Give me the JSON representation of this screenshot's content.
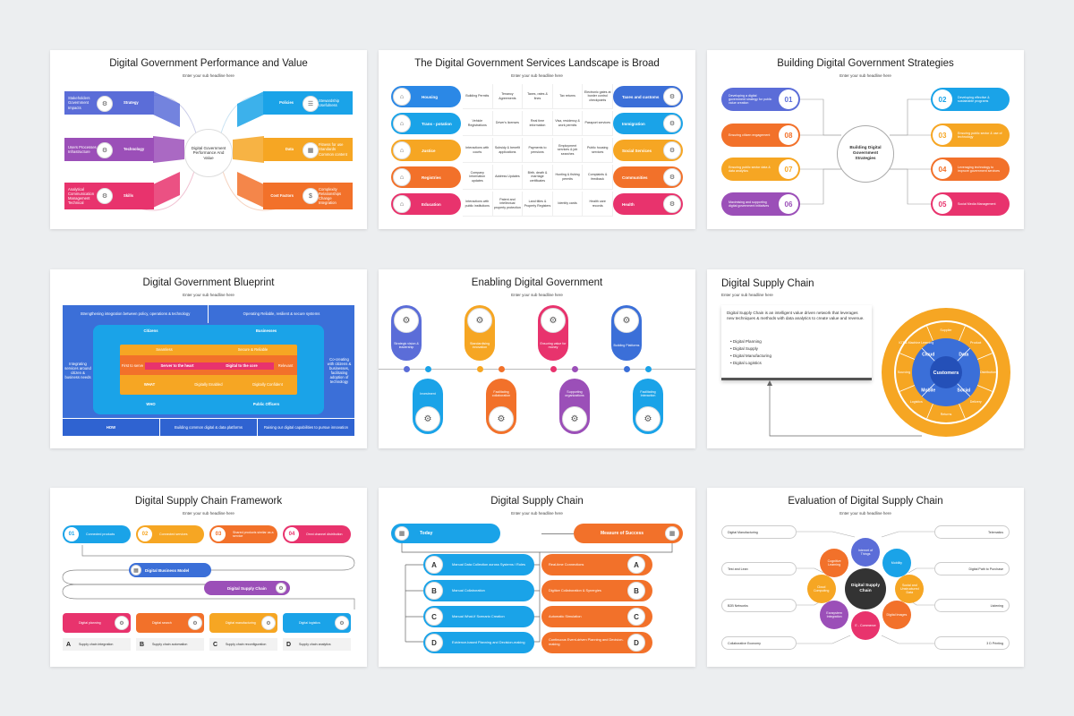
{
  "subtitle": "Enter your sub headline here",
  "s1": {
    "title": "Digital Government Performance and Value",
    "center": "Digital Government Performance And Value",
    "left": [
      {
        "label": "Strategy",
        "desc": "Stakeholders Government Impacts",
        "color": "#5b6dd8"
      },
      {
        "label": "Technology",
        "desc": "Users Processes Infrastructure",
        "color": "#9b4fb8"
      },
      {
        "label": "Skills",
        "desc": "Analytical Communication Management Technical",
        "color": "#e8336d"
      }
    ],
    "right": [
      {
        "label": "Policies",
        "desc": "Stewardship Usefulness",
        "color": "#1aa3e8"
      },
      {
        "label": "Data",
        "desc": "Fitness for use Standards Common content",
        "color": "#f6a623"
      },
      {
        "label": "Cost Factors",
        "desc": "Complexity Relationships Change Integration",
        "color": "#f2712a"
      }
    ]
  },
  "s2": {
    "title": "The Digital Government Services Landscape is Broad",
    "left": [
      {
        "label": "Housing",
        "color": "#2b88e6"
      },
      {
        "label": "Trans - potation",
        "color": "#1aa3e8"
      },
      {
        "label": "Justice",
        "color": "#f6a623"
      },
      {
        "label": "Registries",
        "color": "#f2712a"
      },
      {
        "label": "Education",
        "color": "#e8336d"
      }
    ],
    "right": [
      {
        "label": "Taxes and customs",
        "color": "#3b6fd8"
      },
      {
        "label": "Immigration",
        "color": "#1aa3e8"
      },
      {
        "label": "Social Services",
        "color": "#f6a623"
      },
      {
        "label": "Communities",
        "color": "#f2712a"
      },
      {
        "label": "Health",
        "color": "#e8336d"
      }
    ],
    "cells": [
      [
        "Building Permits",
        "Tenancy Agreements",
        "Taxes, rates & fines",
        "Tax returns",
        "Electronic gates at border control checkpoints"
      ],
      [
        "Vehicle Registrations",
        "Driver's licenses",
        "Real time information",
        "Visa, residency & work permits",
        "Passport services"
      ],
      [
        "Interactions with courts",
        "Subsidy & benefit applications",
        "Payments to pensions",
        "Employment services & job searches",
        "Public housing services"
      ],
      [
        "Company information updates",
        "Address Updates",
        "Birth, death & marriage certificates",
        "Hunting & fishing permits",
        "Complaints & feedback"
      ],
      [
        "Interactions with public institutions",
        "Patent and intellectual property protection",
        "Land titles & Property Registers",
        "Identity cards",
        "Health care records"
      ]
    ]
  },
  "s3": {
    "title": "Building Digital Government Strategies",
    "center": "Building Digital Government Strategies",
    "left": [
      {
        "num": "01",
        "text": "Developing a digital government strategy for public value creation",
        "color": "#5b6dd8"
      },
      {
        "num": "08",
        "text": "Ensuring citizen engagement",
        "color": "#f2712a"
      },
      {
        "num": "07",
        "text": "Ensuring public sector data & data analytics",
        "color": "#f6a623"
      },
      {
        "num": "06",
        "text": "Maximising and supporting digital government initiatives",
        "color": "#9b4fb8"
      }
    ],
    "right": [
      {
        "num": "02",
        "text": "Developing effective & sustainable programs",
        "color": "#1aa3e8"
      },
      {
        "num": "03",
        "text": "Ensuring public sector & use of technology",
        "color": "#f6a623"
      },
      {
        "num": "04",
        "text": "Leveraging technology to improve government services",
        "color": "#f2712a"
      },
      {
        "num": "05",
        "text": "Social Media Management",
        "color": "#e8336d"
      }
    ]
  },
  "s4": {
    "title": "Digital Government Blueprint",
    "top_left": "Strengthening integration between policy, operations & technology",
    "top_right": "Operating Reliable, resilient & secure systems",
    "left_side": "Integrating services around citizen & business needs",
    "right_side": "Co-creating with citizens & businesses, facilitating adoption of technology",
    "citizens": "Citizens",
    "businesses": "Businesses",
    "seamless": "Seamless",
    "secure": "Secure & Reliable",
    "first_to_serve": "First to serve",
    "server_heart": "Server to the heart",
    "digital_core": "Digital to the core",
    "relevant": "Relevant",
    "what": "WHAT",
    "digitally_enabled": "Digitally Enabled",
    "digitally_confident": "Digitally Confident",
    "who": "WHO",
    "public_officers": "Public Officers",
    "how": "HOW",
    "bottom_mid": "Building common digital & data platforms",
    "bottom_right": "Raising our digital capabilities to pursue innovation"
  },
  "s5": {
    "title": "Enabling Digital Government",
    "top": [
      {
        "text": "Strategic vision & leadership",
        "color": "#5b6dd8"
      },
      {
        "text": "Standardising innovation",
        "color": "#f6a623"
      },
      {
        "text": "Ensuring value for money",
        "color": "#e8336d"
      },
      {
        "text": "Building Platforms",
        "color": "#3b6fd8"
      }
    ],
    "bottom": [
      {
        "text": "Investment",
        "color": "#1aa3e8"
      },
      {
        "text": "Facilitating collaboration",
        "color": "#f2712a"
      },
      {
        "text": "Supporting organizations",
        "color": "#9b4fb8"
      },
      {
        "text": "Facilitating Interaction",
        "color": "#1aa3e8"
      }
    ]
  },
  "s6": {
    "title": "Digital Supply Chain",
    "intro": "Digital Supply Chain is an intelligent value driven network that leverages new techniques & methods with data analytics to create value and revenue.",
    "bullets": [
      "Digital Planning",
      "Digital Supply",
      "Digital Manufacturing",
      "Digital Logistics"
    ],
    "center": "Customers",
    "inner": [
      "Cloud",
      "Data",
      "Social",
      "Mobile"
    ],
    "outer": [
      "Supplier",
      "Product",
      "Distribution",
      "Delivery",
      "Returns",
      "Logistics",
      "Sourcing",
      "IOT & Machine Learning"
    ]
  },
  "s7": {
    "title": "Digital Supply Chain Framework",
    "top": [
      {
        "num": "01",
        "text": "Connected products",
        "color": "#1aa3e8"
      },
      {
        "num": "02",
        "text": "Connected services",
        "color": "#f6a623"
      },
      {
        "num": "03",
        "text": "Shared products similar as a service",
        "color": "#f2712a"
      },
      {
        "num": "04",
        "text": "Omni channel distribution",
        "color": "#e8336d"
      }
    ],
    "model": "Digital Business Model",
    "chain": "Digital Supply Chain",
    "bottom": [
      {
        "text": "Digital planning",
        "color": "#e8336d"
      },
      {
        "text": "Digital search",
        "color": "#f2712a"
      },
      {
        "text": "Digital manufacturing",
        "color": "#f6a623"
      },
      {
        "text": "Digital logistics",
        "color": "#1aa3e8"
      }
    ],
    "letters": [
      {
        "letter": "A",
        "text": "Supply chain integration"
      },
      {
        "letter": "B",
        "text": "Supply chain automation"
      },
      {
        "letter": "C",
        "text": "Supply chain reconfiguration"
      },
      {
        "letter": "D",
        "text": "Supply chain analytics"
      }
    ]
  },
  "s8": {
    "title": "Digital Supply Chain",
    "today": "Today",
    "measure": "Measure of Success",
    "rows": [
      {
        "letter": "A",
        "left": "Manual Data Collection across Systems / Roles",
        "right": "Real-time Connections"
      },
      {
        "letter": "B",
        "left": "Manual Collaboration",
        "right": "Digitize Collaboration & Synergies"
      },
      {
        "letter": "C",
        "left": "Manual What-If Scenario Creation",
        "right": "Automatic Simulation"
      },
      {
        "letter": "D",
        "left": "Evidence-based Planning and Decision-making",
        "right": "Continuous Event-driven Planning and Decision-making"
      }
    ]
  },
  "s9": {
    "title": "Evaluation of Digital Supply Chain",
    "center": "Digital Supply Chain",
    "labels_left": [
      "Digital Manufacturing",
      "Test and Lean",
      "B2B Networks",
      "Collaborative Economy"
    ],
    "labels_right": [
      "Telematics",
      "Digital Path to Purchase",
      "Listening",
      "3 D Printing"
    ],
    "bubbles": [
      {
        "text": "Internet of Things",
        "color": "#5b6dd8"
      },
      {
        "text": "Mobility",
        "color": "#1aa3e8"
      },
      {
        "text": "Social and Unstructured Data",
        "color": "#f6a623"
      },
      {
        "text": "Digital Images",
        "color": "#f2712a"
      },
      {
        "text": "E - Commerce",
        "color": "#e8336d"
      },
      {
        "text": "Ecosystem Integration",
        "color": "#9b4fb8"
      },
      {
        "text": "Cloud Computing",
        "color": "#f6a623"
      },
      {
        "text": "Cognitive Learning",
        "color": "#f2712a"
      }
    ]
  }
}
